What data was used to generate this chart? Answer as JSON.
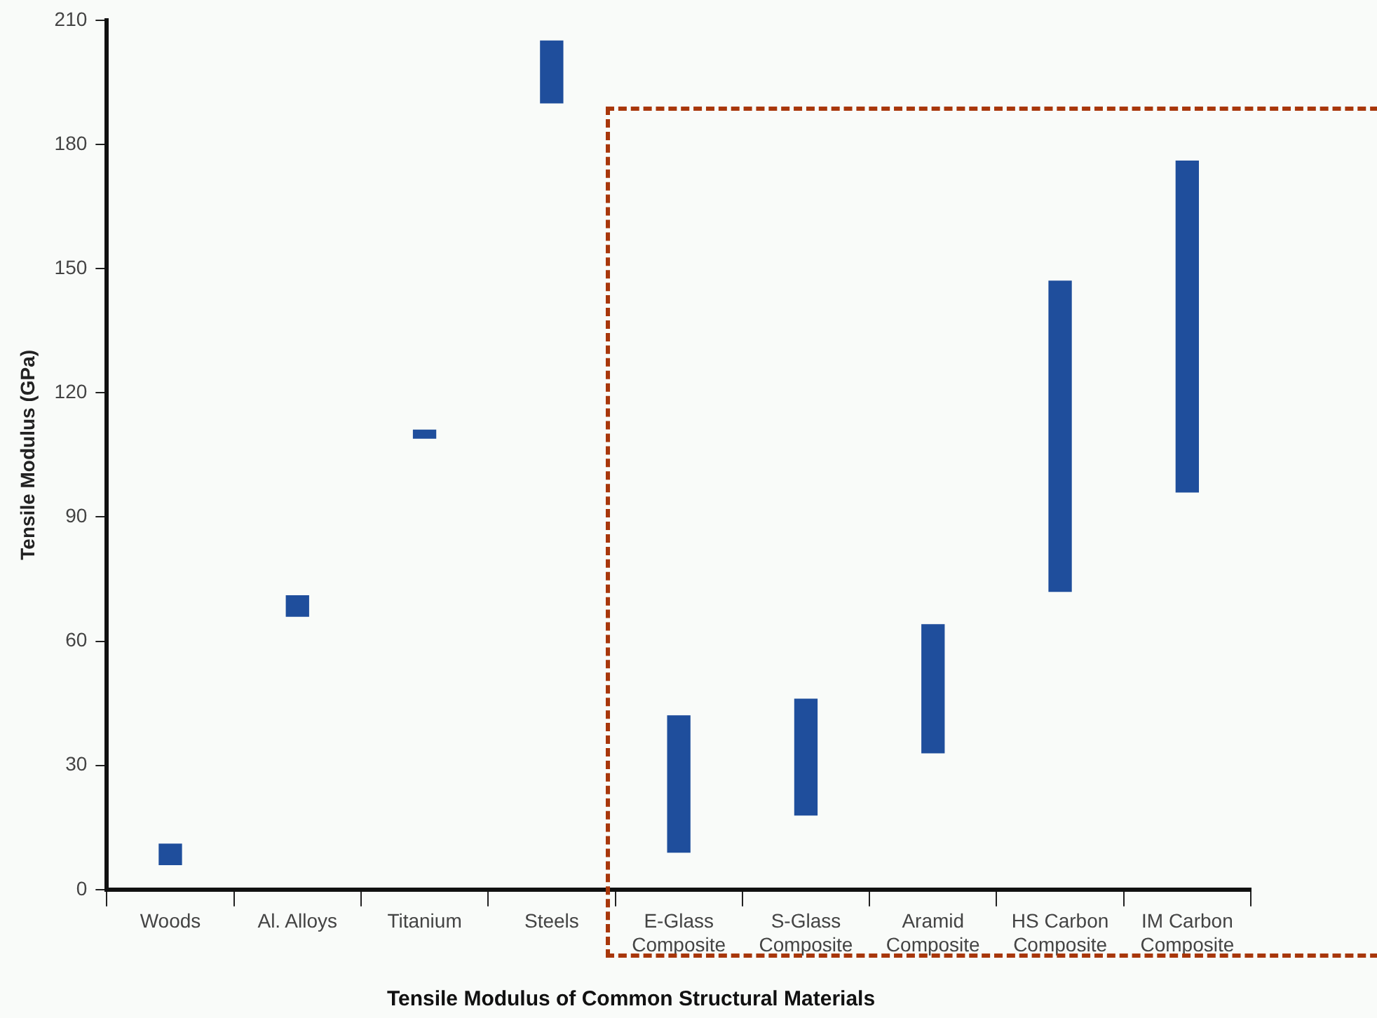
{
  "chart_data": {
    "type": "bar",
    "title": "Tensile Modulus of Common Structural Materials",
    "ylabel": "Tensile Modulus (GPa)",
    "categories": [
      "Woods",
      "Al. Alloys",
      "Titanium",
      "Steels",
      "E-Glass\nComposite",
      "S-Glass\nComposite",
      "Aramid\nComposite",
      "HS Carbon\nComposite",
      "IM Carbon\nComposite"
    ],
    "base": [
      6,
      66,
      109,
      190,
      9,
      18,
      33,
      72,
      96
    ],
    "values": [
      5,
      5,
      2,
      15,
      33,
      28,
      31,
      75,
      80
    ],
    "color": "#1f4e9c",
    "ylim": [
      0,
      210
    ],
    "yticks": [
      0,
      30,
      60,
      90,
      120,
      150,
      180,
      210
    ],
    "grid": false,
    "legend": false
  }
}
